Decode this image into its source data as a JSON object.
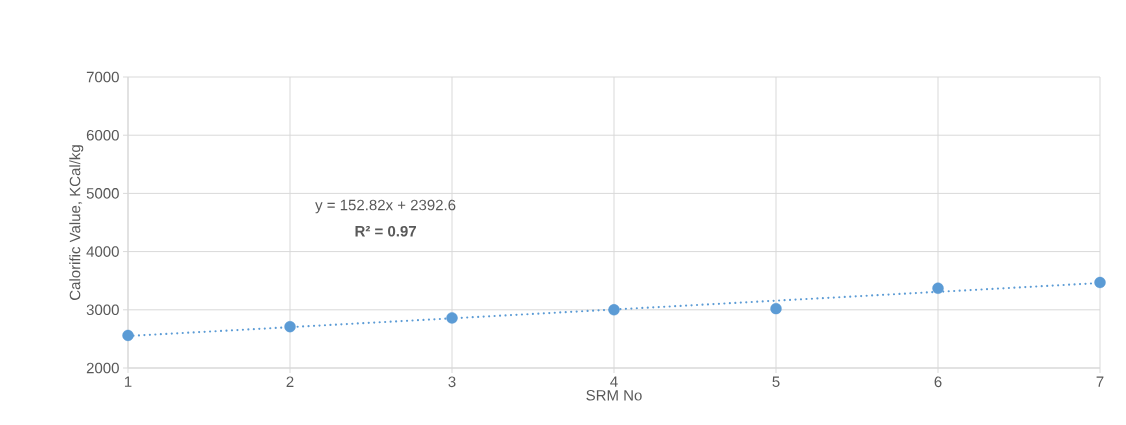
{
  "chart_data": {
    "type": "scatter",
    "xlabel": "SRM No",
    "ylabel": "Calorific Value, KCal/kg",
    "x": [
      1,
      2,
      3,
      4,
      5,
      6,
      7
    ],
    "series": [
      {
        "color": "#5b9bd5",
        "marker": "circle",
        "values": [
          2560,
          2710,
          2860,
          3000,
          3020,
          3370,
          3470
        ]
      },
      {
        "type": "line",
        "color": "#5b9bd5",
        "line_style": "dotted",
        "marker": "none",
        "x": [
          1,
          7
        ],
        "values": [
          2550,
          3460
        ]
      }
    ],
    "xlim": [
      1,
      7
    ],
    "xticks": [
      1,
      2,
      3,
      4,
      5,
      6,
      7
    ],
    "ylim": [
      2000,
      7000
    ],
    "yticks": [
      2000,
      3000,
      4000,
      5000,
      6000,
      7000
    ],
    "grid": true,
    "annotations": [
      "y = 152.82x + 2392.6",
      "R² = 0.97"
    ]
  }
}
